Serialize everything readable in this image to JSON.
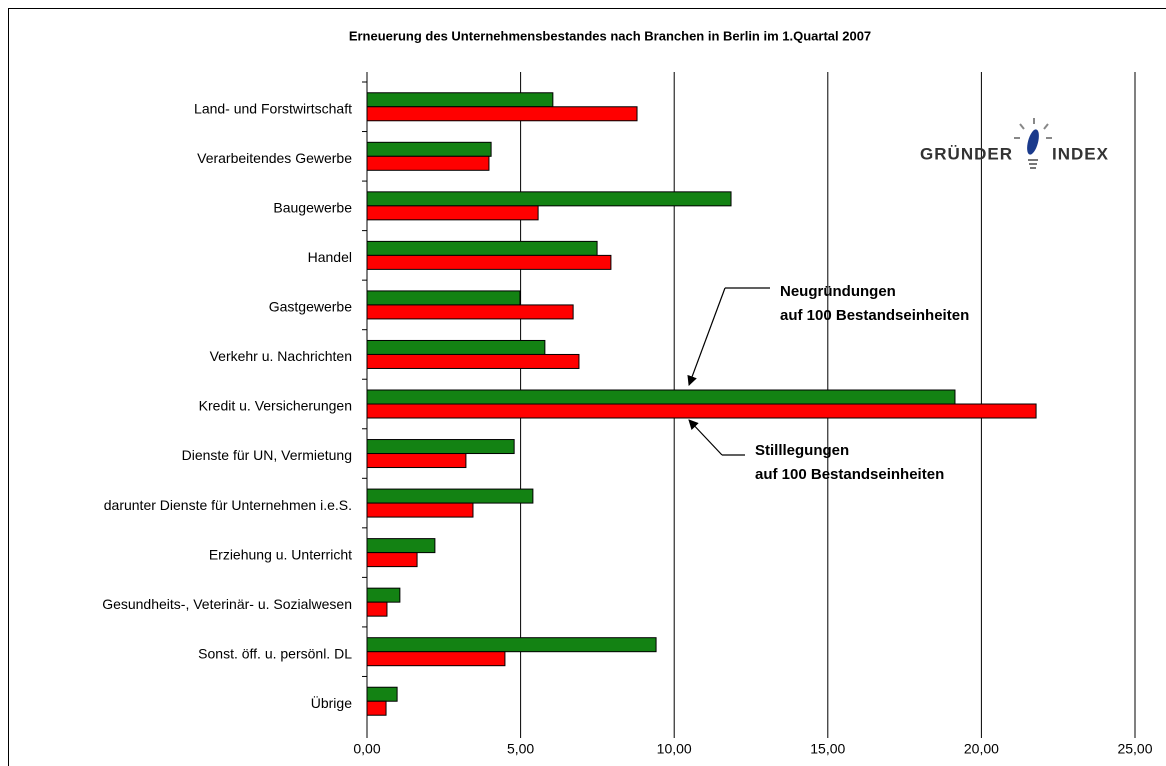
{
  "chart_data": {
    "type": "hbar",
    "title": "Erneuerung des Unternehmensbestandes nach Branchen in Berlin im 1.Quartal 2007",
    "categories": [
      "Land- und Forstwirtschaft",
      "Verarbeitendes Gewerbe",
      "Baugewerbe",
      "Handel",
      "Gastgewerbe",
      "Verkehr u. Nachrichten",
      "Kredit u. Versicherungen",
      "Dienste für UN, Vermietung",
      "darunter Dienste für Unternehmen i.e.S.",
      "Erziehung u. Unterricht",
      "Gesundheits-, Veterinär- u. Sozialwesen",
      "Sonst. öff. u. persönl. DL",
      "Übrige"
    ],
    "series": [
      {
        "color": "#138213",
        "values": [
          6.05,
          4.04,
          11.85,
          7.49,
          4.98,
          5.79,
          19.14,
          4.79,
          5.4,
          2.21,
          1.07,
          9.41,
          0.98
        ]
      },
      {
        "color": "#ff0000",
        "values": [
          8.79,
          3.97,
          5.57,
          7.94,
          6.71,
          6.9,
          21.78,
          3.22,
          3.45,
          1.63,
          0.65,
          4.49,
          0.62
        ]
      }
    ],
    "xlim": [
      0,
      25
    ],
    "xticks": [
      {
        "value": 0,
        "label": "0,00"
      },
      {
        "value": 5,
        "label": "5,00"
      },
      {
        "value": 10,
        "label": "10,00"
      },
      {
        "value": 15,
        "label": "15,00"
      },
      {
        "value": 20,
        "label": "20,00"
      },
      {
        "value": 25,
        "label": "25,00"
      }
    ],
    "grid": true,
    "annotations": [
      {
        "lines": [
          "Neugründungen",
          "auf 100 Bestandseinheiten"
        ]
      },
      {
        "lines": [
          "Stilllegungen",
          "auf 100 Bestandseinheiten"
        ]
      }
    ],
    "logo": [
      "GRÜNDER",
      "INDEX"
    ]
  }
}
